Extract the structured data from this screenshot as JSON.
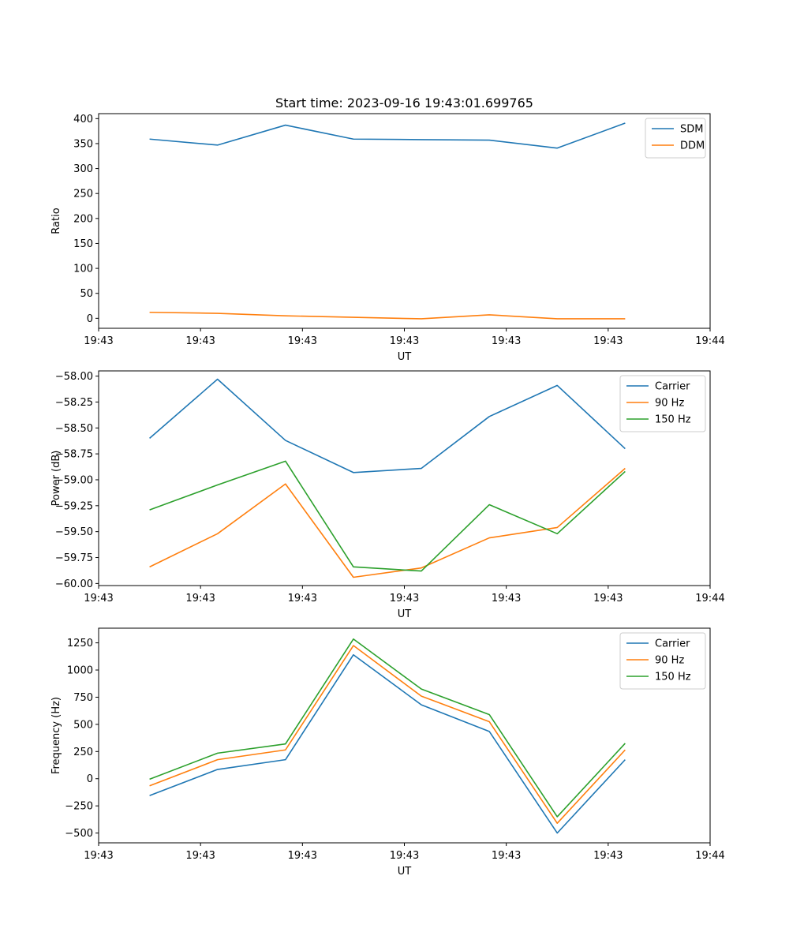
{
  "title": "Start time: 2023-09-16 19:43:01.699765",
  "chart_data": [
    {
      "type": "line",
      "ylabel": "Ratio",
      "xlabel": "UT",
      "x": [
        1,
        2,
        3,
        4,
        5,
        6,
        7,
        8
      ],
      "xlim": [
        0.25,
        9.25
      ],
      "xticks": [
        0.25,
        1.75,
        3.25,
        4.75,
        6.25,
        7.75,
        9.25
      ],
      "xtick_labels": [
        "19:43",
        "19:43",
        "19:43",
        "19:43",
        "19:43",
        "19:43",
        "19:44"
      ],
      "ylim": [
        -20,
        410
      ],
      "yticks": [
        0,
        50,
        100,
        150,
        200,
        250,
        300,
        350,
        400
      ],
      "ytick_labels": [
        "0",
        "50",
        "100",
        "150",
        "200",
        "250",
        "300",
        "350",
        "400"
      ],
      "legend_position": "top-right",
      "series": [
        {
          "name": "SDM",
          "color": "#1f77b4",
          "values": [
            359,
            347,
            387,
            359,
            358,
            357,
            341,
            391
          ]
        },
        {
          "name": "DDM",
          "color": "#ff7f0e",
          "values": [
            12,
            10,
            5,
            2,
            -1,
            7,
            -1,
            -1
          ]
        }
      ]
    },
    {
      "type": "line",
      "ylabel": "Power (dB)",
      "xlabel": "UT",
      "x": [
        1,
        2,
        3,
        4,
        5,
        6,
        7,
        8
      ],
      "xlim": [
        0.25,
        9.25
      ],
      "xticks": [
        0.25,
        1.75,
        3.25,
        4.75,
        6.25,
        7.75,
        9.25
      ],
      "xtick_labels": [
        "19:43",
        "19:43",
        "19:43",
        "19:43",
        "19:43",
        "19:43",
        "19:44"
      ],
      "ylim": [
        -60.02,
        -57.95
      ],
      "yticks": [
        -60.0,
        -59.75,
        -59.5,
        -59.25,
        -59.0,
        -58.75,
        -58.5,
        -58.25,
        -58.0
      ],
      "ytick_labels": [
        "−60.00",
        "−59.75",
        "−59.50",
        "−59.25",
        "−59.00",
        "−58.75",
        "−58.50",
        "−58.25",
        "−58.00"
      ],
      "legend_position": "top-right",
      "series": [
        {
          "name": "Carrier",
          "color": "#1f77b4",
          "values": [
            -58.6,
            -58.03,
            -58.62,
            -58.93,
            -58.89,
            -58.39,
            -58.09,
            -58.7
          ]
        },
        {
          "name": "90 Hz",
          "color": "#ff7f0e",
          "values": [
            -59.84,
            -59.52,
            -59.04,
            -59.94,
            -59.85,
            -59.56,
            -59.46,
            -58.89
          ]
        },
        {
          "name": "150 Hz",
          "color": "#2ca02c",
          "values": [
            -59.29,
            -59.05,
            -58.82,
            -59.84,
            -59.88,
            -59.24,
            -59.52,
            -58.92
          ]
        }
      ]
    },
    {
      "type": "line",
      "ylabel": "Frequency (Hz)",
      "xlabel": "UT",
      "x": [
        1,
        2,
        3,
        4,
        5,
        6,
        7,
        8
      ],
      "xlim": [
        0.25,
        9.25
      ],
      "xticks": [
        0.25,
        1.75,
        3.25,
        4.75,
        6.25,
        7.75,
        9.25
      ],
      "xtick_labels": [
        "19:43",
        "19:43",
        "19:43",
        "19:43",
        "19:43",
        "19:43",
        "19:44"
      ],
      "ylim": [
        -590,
        1385
      ],
      "yticks": [
        -500,
        -250,
        0,
        250,
        500,
        750,
        1000,
        1250
      ],
      "ytick_labels": [
        "−500",
        "−250",
        "0",
        "250",
        "500",
        "750",
        "1000",
        "1250"
      ],
      "legend_position": "top-right",
      "series": [
        {
          "name": "Carrier",
          "color": "#1f77b4",
          "values": [
            -155,
            85,
            175,
            1140,
            680,
            435,
            -500,
            175
          ]
        },
        {
          "name": "90 Hz",
          "color": "#ff7f0e",
          "values": [
            -65,
            175,
            265,
            1225,
            760,
            525,
            -410,
            265
          ]
        },
        {
          "name": "150 Hz",
          "color": "#2ca02c",
          "values": [
            -5,
            235,
            320,
            1285,
            825,
            590,
            -350,
            325
          ]
        }
      ]
    }
  ]
}
